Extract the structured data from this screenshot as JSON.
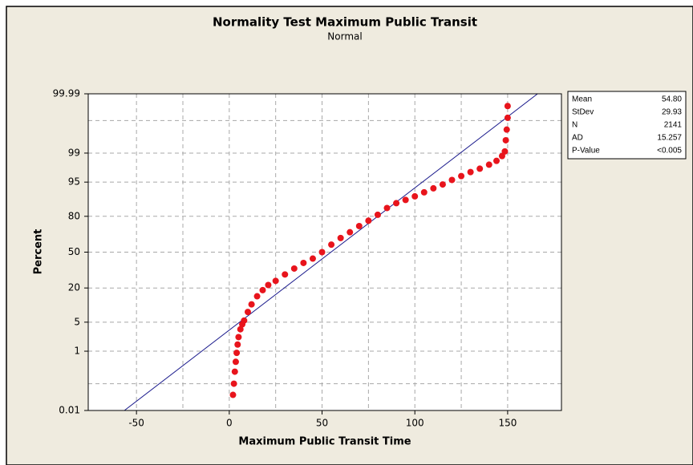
{
  "chart_data": {
    "type": "probability",
    "title": "Normality Test Maximum Public Transit",
    "subtitle": "Normal",
    "xlabel": "Maximum Public Transit Time",
    "ylabel": "Percent",
    "xlim": [
      -76,
      179
    ],
    "xticks": [
      -50,
      0,
      50,
      100,
      150
    ],
    "xgrid": [
      -50,
      -25,
      0,
      25,
      50,
      75,
      100,
      125,
      150
    ],
    "ylim": [
      0.01,
      99.99
    ],
    "yticks": [
      0.01,
      1,
      5,
      20,
      50,
      80,
      95,
      99,
      99.99
    ],
    "ygrid": [
      0.1,
      1,
      5,
      20,
      50,
      80,
      95,
      99,
      99.9
    ],
    "y_scale": "normal-probability",
    "grid": true,
    "line_color": "#1a1a8c",
    "series": [
      {
        "color": "#e8141c",
        "x": [
          2,
          2.5,
          3,
          3.5,
          4,
          4.5,
          5,
          6,
          7,
          8,
          10,
          12,
          15,
          18,
          21,
          25,
          30,
          35,
          40,
          45,
          50,
          55,
          60,
          65,
          70,
          75,
          80,
          85,
          90,
          95,
          100,
          105,
          110,
          115,
          120,
          125,
          130,
          135,
          140,
          144,
          147,
          148.5,
          149,
          149.5,
          150,
          150
        ],
        "values": [
          0.04,
          0.1,
          0.25,
          0.5,
          0.9,
          1.5,
          2.3,
          3.5,
          4.5,
          5.4,
          8,
          11,
          15,
          18.6,
          22,
          25,
          30,
          35,
          40,
          44,
          50,
          57,
          63,
          68,
          73,
          77,
          81,
          85,
          87.5,
          89,
          90.5,
          92,
          93.3,
          94.4,
          95.5,
          96.3,
          97,
          97.5,
          98,
          98.4,
          98.8,
          99.1,
          99.57,
          99.8,
          99.92,
          99.97
        ]
      }
    ],
    "stats": [
      {
        "name": "Mean",
        "value": 54.8,
        "label": "54.80"
      },
      {
        "name": "StDev",
        "value": 29.93,
        "label": "29.93"
      },
      {
        "name": "N",
        "value": 2141,
        "label": "2141"
      },
      {
        "name": "AD",
        "value": 15.257,
        "label": "15.257"
      },
      {
        "name": "P-Value",
        "label": "<0.005"
      }
    ]
  }
}
